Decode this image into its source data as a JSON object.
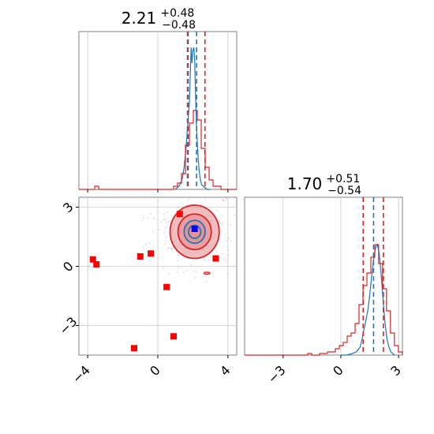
{
  "colors": {
    "red": "#d62728",
    "blue": "#1f77b4",
    "grid": "#c8c8c8",
    "point_red": "#ff0000",
    "point_blue": "#0000ff",
    "contour_fill": "#e8868a"
  },
  "chart_data": [
    {
      "type": "histogram",
      "panel": "top-left",
      "title": {
        "value": "2.21",
        "sup": "+0.48",
        "sub": "−0.48"
      },
      "xlim": [
        -4.5,
        4.5
      ],
      "x_ticks": [
        -4,
        0,
        4
      ],
      "grid": true,
      "bin_edges": [
        -4.5,
        -4.275,
        -4.05,
        -3.825,
        -3.6,
        -3.375,
        -3.15,
        -2.925,
        -2.7,
        -2.475,
        -2.25,
        -2.025,
        -1.8,
        -1.575,
        -1.35,
        -1.125,
        -0.9,
        -0.675,
        -0.45,
        -0.225,
        0.0,
        0.225,
        0.45,
        0.675,
        0.9,
        1.125,
        1.35,
        1.575,
        1.8,
        2.025,
        2.25,
        2.475,
        2.7,
        2.925,
        3.15,
        3.375,
        3.6,
        3.825,
        4.05,
        4.275,
        4.5
      ],
      "series": [
        {
          "color": "blue",
          "x": [
            1.0,
            1.1,
            1.2,
            1.3,
            1.4,
            1.5,
            1.6,
            1.7,
            1.8,
            1.85,
            1.9,
            1.95,
            2.0,
            2.05,
            2.1,
            2.15,
            2.2,
            2.25,
            2.3,
            2.35,
            2.4,
            2.45,
            2.5,
            2.6,
            2.7,
            2.8,
            2.9,
            3.0
          ],
          "y": [
            0.0,
            0.01,
            0.02,
            0.04,
            0.07,
            0.14,
            0.25,
            0.4,
            0.55,
            0.72,
            0.9,
            0.8,
            0.88,
            0.9,
            0.82,
            0.6,
            0.42,
            0.3,
            0.2,
            0.13,
            0.08,
            0.05,
            0.03,
            0.02,
            0.01,
            0.0,
            0.0,
            0.0
          ]
        },
        {
          "color": "red",
          "y": [
            0.0,
            0.0,
            0.0,
            0.0,
            0.02,
            0.0,
            0.0,
            0.0,
            0.0,
            0.0,
            0.0,
            0.0,
            0.0,
            0.0,
            0.0,
            0.0,
            0.0,
            0.0,
            0.0,
            0.0,
            0.0,
            0.0,
            0.0,
            0.0,
            0.02,
            0.04,
            0.1,
            0.28,
            0.42,
            0.5,
            0.44,
            0.26,
            0.14,
            0.06,
            0.02,
            0.02,
            0.0,
            0.0,
            0.0,
            0.0
          ]
        }
      ],
      "vlines": [
        {
          "x": 1.73,
          "color": "red",
          "style": "dashed"
        },
        {
          "x": 2.69,
          "color": "red",
          "style": "dashed"
        },
        {
          "x": 1.69,
          "color": "blue",
          "style": "dashed"
        },
        {
          "x": 2.21,
          "color": "blue",
          "style": "dashed"
        }
      ]
    },
    {
      "type": "scatter",
      "panel": "bottom-left",
      "xlim": [
        -4.5,
        4.5
      ],
      "ylim": [
        -4.5,
        3.5
      ],
      "x_ticks": [
        -4,
        0,
        4
      ],
      "y_ticks": [
        3,
        0,
        -3
      ],
      "grid": true,
      "red_squares": [
        {
          "x": -3.7,
          "y": 0.35
        },
        {
          "x": -3.5,
          "y": 0.1
        },
        {
          "x": -1.0,
          "y": 0.5
        },
        {
          "x": -0.4,
          "y": 0.65
        },
        {
          "x": 0.5,
          "y": -1.05
        },
        {
          "x": 0.9,
          "y": -3.55
        },
        {
          "x": 1.25,
          "y": 2.65
        },
        {
          "x": 3.3,
          "y": 0.4
        },
        {
          "x": -1.35,
          "y": -4.15
        }
      ],
      "blue_square": {
        "x": 2.1,
        "y": 1.9
      },
      "contour_center": {
        "x": 2.1,
        "y": 1.75
      },
      "contour_levels": [
        {
          "rx": 1.4,
          "ry": 1.35,
          "fill": true,
          "stroke": "red"
        },
        {
          "rx": 0.95,
          "ry": 0.9,
          "fill": true,
          "stroke": "red"
        },
        {
          "rx": 0.6,
          "ry": 0.58,
          "fill": true,
          "stroke": "blue"
        },
        {
          "rx": 0.35,
          "ry": 0.33,
          "fill": false,
          "stroke": "blue"
        }
      ],
      "minor_blob": {
        "x": 2.8,
        "y": -0.35
      }
    },
    {
      "type": "histogram",
      "panel": "bottom-right",
      "title": {
        "value": "1.70",
        "sup": "+0.51",
        "sub": "−0.54"
      },
      "xlim": [
        -5.0,
        3.2
      ],
      "x_ticks": [
        -3,
        0,
        3
      ],
      "grid": true,
      "bin_edges": [
        -5.0,
        -4.795,
        -4.59,
        -4.385,
        -4.18,
        -3.975,
        -3.77,
        -3.565,
        -3.36,
        -3.155,
        -2.95,
        -2.745,
        -2.54,
        -2.335,
        -2.13,
        -1.925,
        -1.72,
        -1.515,
        -1.31,
        -1.105,
        -0.9,
        -0.695,
        -0.49,
        -0.285,
        -0.08,
        0.125,
        0.33,
        0.535,
        0.74,
        0.945,
        1.15,
        1.355,
        1.56,
        1.765,
        1.96,
        2.165,
        2.37,
        2.575,
        2.78,
        2.985,
        3.19
      ],
      "series": [
        {
          "color": "blue",
          "x": [
            0.0,
            0.3,
            0.6,
            0.8,
            1.0,
            1.1,
            1.2,
            1.3,
            1.4,
            1.5,
            1.6,
            1.7,
            1.8,
            1.9,
            2.0,
            2.1,
            2.2,
            2.3,
            2.4,
            2.5,
            2.6,
            2.8
          ],
          "y": [
            0.0,
            0.0,
            0.01,
            0.02,
            0.05,
            0.1,
            0.16,
            0.22,
            0.28,
            0.38,
            0.5,
            0.6,
            0.68,
            0.7,
            0.64,
            0.5,
            0.34,
            0.2,
            0.1,
            0.05,
            0.02,
            0.0
          ]
        },
        {
          "color": "red",
          "y": [
            0.0,
            0.0,
            0.0,
            0.0,
            0.0,
            0.0,
            0.0,
            0.0,
            0.0,
            0.0,
            0.0,
            0.0,
            0.0,
            0.0,
            0.0,
            0.0,
            0.01,
            0.0,
            0.0,
            0.01,
            0.01,
            0.02,
            0.02,
            0.04,
            0.06,
            0.08,
            0.12,
            0.14,
            0.2,
            0.32,
            0.44,
            0.52,
            0.62,
            0.7,
            0.58,
            0.42,
            0.28,
            0.14,
            0.06,
            0.02
          ]
        }
      ],
      "vlines": [
        {
          "x": 1.16,
          "color": "red",
          "style": "dashed"
        },
        {
          "x": 2.21,
          "color": "red",
          "style": "dashed"
        },
        {
          "x": 1.7,
          "color": "blue",
          "style": "dashed"
        }
      ]
    }
  ]
}
